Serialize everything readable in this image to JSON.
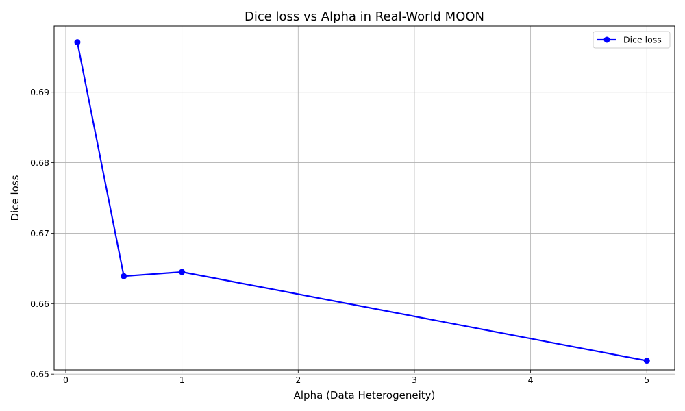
{
  "chart_data": {
    "type": "line",
    "title": "Dice loss vs Alpha in Real-World MOON",
    "xlabel": "Alpha (Data Heterogeneity)",
    "ylabel": "Dice loss",
    "xlim": [
      -0.1,
      5.24
    ],
    "ylim": [
      0.6506,
      0.6994
    ],
    "xticks": [
      0,
      1,
      2,
      3,
      4,
      5
    ],
    "xtick_labels": [
      "0",
      "1",
      "2",
      "3",
      "4",
      "5"
    ],
    "yticks": [
      0.65,
      0.66,
      0.67,
      0.68,
      0.69
    ],
    "ytick_labels": [
      "0.65",
      "0.66",
      "0.67",
      "0.68",
      "0.69"
    ],
    "grid": true,
    "legend_position": "top-right",
    "series": [
      {
        "name": "Dice loss",
        "color": "#0000ff",
        "marker": "circle",
        "x": [
          0.1,
          0.5,
          1,
          5
        ],
        "y": [
          0.6971,
          0.6639,
          0.6645,
          0.6519
        ]
      }
    ]
  }
}
